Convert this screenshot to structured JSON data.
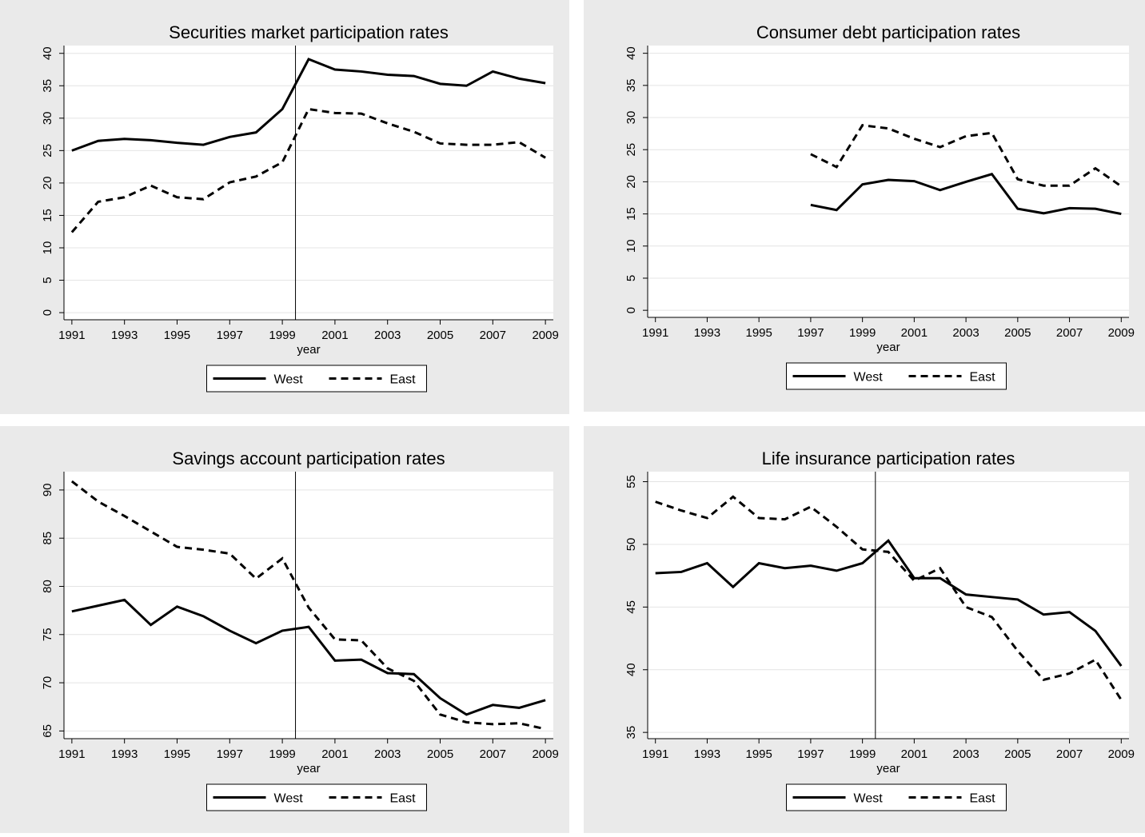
{
  "chart_data": [
    {
      "type": "line",
      "title": "Securities market participation rates",
      "x_label": "year",
      "x": [
        1991,
        1992,
        1993,
        1994,
        1995,
        1996,
        1997,
        1998,
        1999,
        2000,
        2001,
        2002,
        2003,
        2004,
        2005,
        2006,
        2007,
        2008,
        2009
      ],
      "xlim": [
        1990.7,
        2009.3
      ],
      "xticks": [
        1991,
        1993,
        1995,
        1997,
        1999,
        2001,
        2003,
        2005,
        2007,
        2009
      ],
      "ylim": [
        -1.1,
        41.2
      ],
      "yticks": [
        0,
        5,
        10,
        15,
        20,
        25,
        30,
        35,
        40
      ],
      "grid": true,
      "vline": 1999.5,
      "series": [
        {
          "name": "West",
          "color": "#000000",
          "dash": "solid",
          "values": [
            25,
            26.5,
            26.8,
            26.6,
            26.2,
            25.9,
            27.1,
            27.8,
            31.4,
            39.1,
            37.5,
            37.2,
            36.7,
            36.5,
            35.3,
            35.0,
            37.2,
            36.1,
            35.4
          ]
        },
        {
          "name": "East",
          "color": "#000000",
          "dash": "dashed",
          "values": [
            12.4,
            17.1,
            17.8,
            19.6,
            17.8,
            17.5,
            20.1,
            21.0,
            23.2,
            31.4,
            30.8,
            30.7,
            29.2,
            27.9,
            26.1,
            25.9,
            25.9,
            26.3,
            23.9
          ]
        }
      ]
    },
    {
      "type": "line",
      "title": "Consumer debt participation rates",
      "x_label": "year",
      "x": [
        1991,
        1992,
        1993,
        1994,
        1995,
        1996,
        1997,
        1998,
        1999,
        2000,
        2001,
        2002,
        2003,
        2004,
        2005,
        2006,
        2007,
        2008,
        2009
      ],
      "xlim": [
        1990.7,
        2009.3
      ],
      "xticks": [
        1991,
        1993,
        1995,
        1997,
        1999,
        2001,
        2003,
        2005,
        2007,
        2009
      ],
      "ylim": [
        -1.1,
        41.2
      ],
      "yticks": [
        0,
        5,
        10,
        15,
        20,
        25,
        30,
        35,
        40
      ],
      "grid": true,
      "series": [
        {
          "name": "West",
          "color": "#000000",
          "dash": "solid",
          "values": [
            null,
            null,
            null,
            null,
            null,
            null,
            16.4,
            15.6,
            19.6,
            20.3,
            20.1,
            18.7,
            20.0,
            21.2,
            15.8,
            15.1,
            15.9,
            15.8,
            15.0
          ]
        },
        {
          "name": "East",
          "color": "#000000",
          "dash": "dashed",
          "values": [
            null,
            null,
            null,
            null,
            null,
            null,
            24.3,
            22.3,
            28.8,
            28.3,
            26.7,
            25.4,
            27.1,
            27.6,
            20.4,
            19.4,
            19.4,
            22.1,
            19.3
          ]
        }
      ]
    },
    {
      "type": "line",
      "title": "Savings account participation rates",
      "x_label": "year",
      "x": [
        1991,
        1992,
        1993,
        1994,
        1995,
        1996,
        1997,
        1998,
        1999,
        2000,
        2001,
        2002,
        2003,
        2004,
        2005,
        2006,
        2007,
        2008,
        2009
      ],
      "xlim": [
        1990.7,
        2009.3
      ],
      "xticks": [
        1991,
        1993,
        1995,
        1997,
        1999,
        2001,
        2003,
        2005,
        2007,
        2009
      ],
      "ylim": [
        64.2,
        91.9
      ],
      "yticks": [
        65,
        70,
        75,
        80,
        85,
        90
      ],
      "grid": true,
      "vline": 1999.5,
      "series": [
        {
          "name": "West",
          "color": "#000000",
          "dash": "solid",
          "values": [
            77.4,
            78.0,
            78.6,
            76.0,
            77.9,
            76.9,
            75.4,
            74.1,
            75.4,
            75.8,
            72.3,
            72.4,
            71.0,
            70.9,
            68.4,
            66.7,
            67.7,
            67.4,
            68.2
          ]
        },
        {
          "name": "East",
          "color": "#000000",
          "dash": "dashed",
          "values": [
            90.9,
            88.8,
            87.3,
            85.7,
            84.1,
            83.8,
            83.4,
            80.8,
            82.9,
            77.8,
            74.5,
            74.4,
            71.5,
            70.2,
            66.7,
            65.9,
            65.7,
            65.8,
            65.2
          ]
        }
      ]
    },
    {
      "type": "line",
      "title": "Life insurance participation rates",
      "x_label": "year",
      "x": [
        1991,
        1992,
        1993,
        1994,
        1995,
        1996,
        1997,
        1998,
        1999,
        2000,
        2001,
        2002,
        2003,
        2004,
        2005,
        2006,
        2007,
        2008,
        2009
      ],
      "xlim": [
        1990.7,
        2009.3
      ],
      "xticks": [
        1991,
        1993,
        1995,
        1997,
        1999,
        2001,
        2003,
        2005,
        2007,
        2009
      ],
      "ylim": [
        34.5,
        55.8
      ],
      "yticks": [
        35,
        40,
        45,
        50,
        55
      ],
      "grid": true,
      "vline": 1999.5,
      "series": [
        {
          "name": "West",
          "color": "#000000",
          "dash": "solid",
          "values": [
            47.7,
            47.8,
            48.5,
            46.6,
            48.5,
            48.1,
            48.3,
            47.9,
            48.5,
            50.3,
            47.3,
            47.3,
            46.0,
            45.8,
            45.6,
            44.4,
            44.6,
            43.1,
            40.3
          ]
        },
        {
          "name": "East",
          "color": "#000000",
          "dash": "dashed",
          "values": [
            53.4,
            52.7,
            52.1,
            53.8,
            52.1,
            52.0,
            53.0,
            51.4,
            49.6,
            49.4,
            47.1,
            48.1,
            45.0,
            44.2,
            41.5,
            39.2,
            39.7,
            40.8,
            37.6
          ]
        }
      ]
    }
  ]
}
